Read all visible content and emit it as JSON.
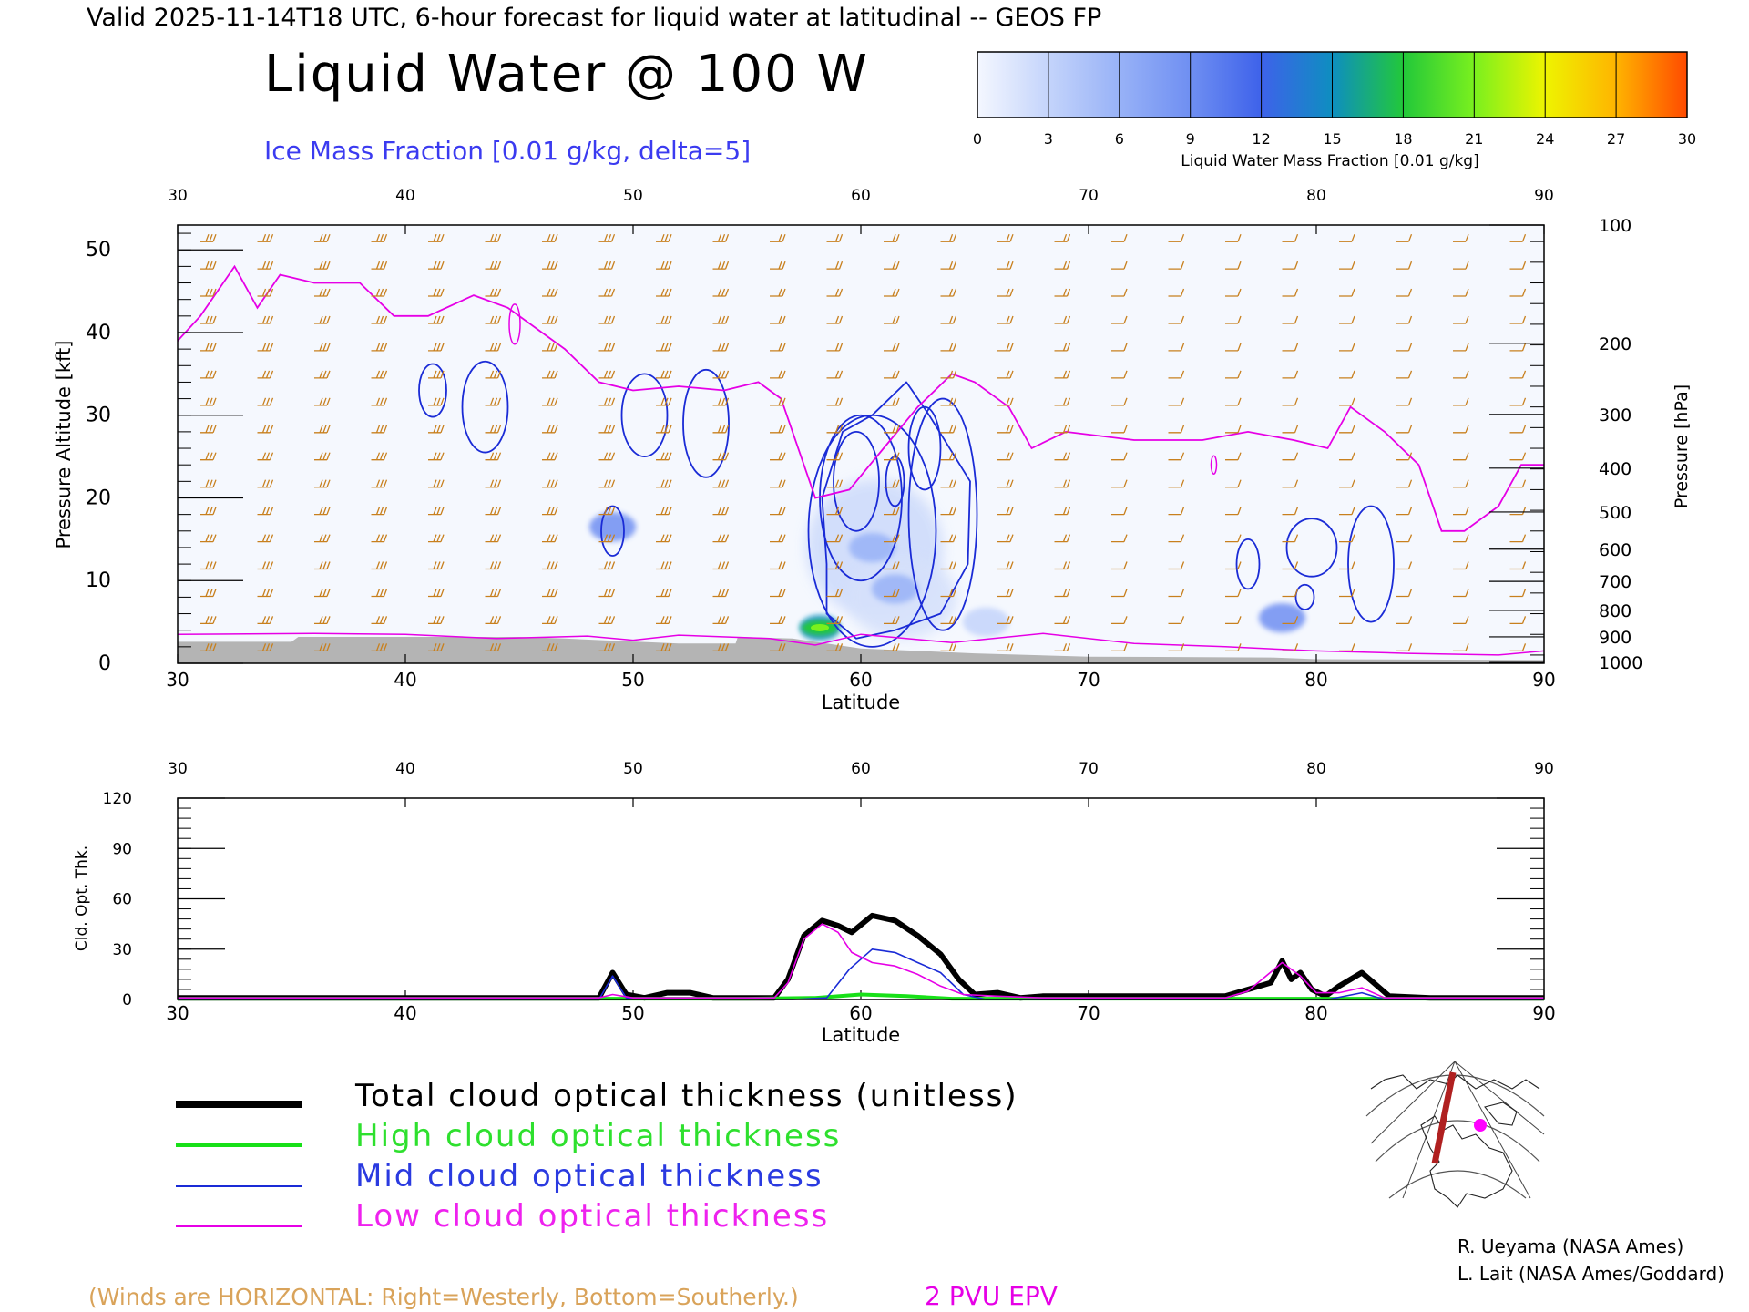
{
  "header": {
    "valid_line": "Valid 2025-11-14T18 UTC, 6-hour forecast for liquid water at latitudinal -- GEOS FP",
    "title": "Liquid Water @ 100 W",
    "ice_label": "Ice Mass Fraction [0.01 g/kg, delta=5]"
  },
  "colorbar": {
    "ticks": [
      "0",
      "3",
      "6",
      "9",
      "12",
      "15",
      "18",
      "21",
      "24",
      "27",
      "30"
    ],
    "colors": [
      "#f4f7ff",
      "#c4d4fb",
      "#98b2f7",
      "#6f8ff2",
      "#3e62ea",
      "#0e8ec0",
      "#22c83a",
      "#7af01e",
      "#eef400",
      "#ffb400",
      "#ff4a00"
    ],
    "label": "Liquid Water Mass Fraction [0.01 g/kg]"
  },
  "chart_data": [
    {
      "type": "heatmap",
      "top_axis_ticks": [
        "30",
        "40",
        "50",
        "60",
        "70",
        "80",
        "90"
      ],
      "x_ticks": [
        "30",
        "40",
        "50",
        "60",
        "70",
        "80",
        "90"
      ],
      "xlabel": "Latitude",
      "xlim": [
        30,
        90
      ],
      "ylabel": "Pressure Altitude [kft]",
      "y_ticks": [
        "0",
        "10",
        "20",
        "30",
        "40",
        "50"
      ],
      "ylim": [
        0,
        53
      ],
      "right_ylabel": "Pressure [hPa]",
      "right_ticks": [
        {
          "label": "100",
          "kft": 53.0
        },
        {
          "label": "200",
          "kft": 38.7
        },
        {
          "label": "300",
          "kft": 30.1
        },
        {
          "label": "400",
          "kft": 23.6
        },
        {
          "label": "500",
          "kft": 18.3
        },
        {
          "label": "600",
          "kft": 13.8
        },
        {
          "label": "700",
          "kft": 9.9
        },
        {
          "label": "800",
          "kft": 6.4
        },
        {
          "label": "900",
          "kft": 3.2
        },
        {
          "label": "1000",
          "kft": 0.1
        }
      ],
      "liquid_water_blobs": [
        {
          "lat": 58.2,
          "kft": 4.3,
          "value": 16
        },
        {
          "lat": 60.5,
          "kft": 14,
          "value": 7
        },
        {
          "lat": 61.5,
          "kft": 9,
          "value": 5
        },
        {
          "lat": 49.1,
          "kft": 16.5,
          "value": 9
        },
        {
          "lat": 78.5,
          "kft": 5.5,
          "value": 9
        },
        {
          "lat": 65.5,
          "kft": 5.0,
          "value": 4
        }
      ],
      "ice_contour_color": "#1a2bd6",
      "pv_contour_color": "#e600e6",
      "pv_2pvu_line": [
        [
          30.0,
          39
        ],
        [
          31.0,
          42
        ],
        [
          32.5,
          48
        ],
        [
          33.5,
          43
        ],
        [
          34.5,
          47
        ],
        [
          36.0,
          46
        ],
        [
          38.0,
          46
        ],
        [
          39.5,
          42
        ],
        [
          41.0,
          42
        ],
        [
          43.0,
          44.5
        ],
        [
          44.5,
          43
        ],
        [
          46.0,
          40
        ],
        [
          47.0,
          38
        ],
        [
          48.5,
          34
        ],
        [
          50.0,
          33
        ],
        [
          52.0,
          33.5
        ],
        [
          54.0,
          33
        ],
        [
          55.5,
          34
        ],
        [
          56.5,
          32
        ],
        [
          58.0,
          20
        ],
        [
          59.5,
          21
        ],
        [
          61.0,
          26
        ],
        [
          62.5,
          31
        ],
        [
          64.0,
          35
        ],
        [
          65.0,
          34
        ],
        [
          66.5,
          31
        ],
        [
          67.5,
          26
        ],
        [
          69.0,
          28
        ],
        [
          72.0,
          27
        ],
        [
          75.0,
          27
        ],
        [
          77.0,
          28
        ],
        [
          79.0,
          27
        ],
        [
          80.5,
          26
        ],
        [
          81.5,
          31
        ],
        [
          83.0,
          28
        ],
        [
          84.5,
          24
        ],
        [
          85.5,
          16
        ],
        [
          86.5,
          16
        ],
        [
          88.0,
          19
        ],
        [
          89.0,
          24
        ],
        [
          90.0,
          24
        ]
      ],
      "wind_color": "#c8801e",
      "terrain_color": "#b4b4b4"
    },
    {
      "type": "line",
      "top_axis_ticks": [
        "30",
        "40",
        "50",
        "60",
        "70",
        "80",
        "90"
      ],
      "x_ticks": [
        "30",
        "40",
        "50",
        "60",
        "70",
        "80",
        "90"
      ],
      "xlabel": "Latitude",
      "xlim": [
        30,
        90
      ],
      "ylabel": "Cld. Opt. Thk.",
      "y_ticks": [
        "0",
        "30",
        "60",
        "90",
        "120"
      ],
      "ylim": [
        0,
        120
      ],
      "series": [
        {
          "name": "Total cloud optical thickness (unitless)",
          "color": "#000000",
          "values": [
            [
              30,
              1
            ],
            [
              48.5,
              1
            ],
            [
              49.1,
              16
            ],
            [
              49.7,
              3
            ],
            [
              50.5,
              1
            ],
            [
              51.5,
              4
            ],
            [
              52.5,
              4
            ],
            [
              53.5,
              1
            ],
            [
              56.2,
              1
            ],
            [
              56.8,
              12
            ],
            [
              57.5,
              38
            ],
            [
              58.3,
              47
            ],
            [
              59.0,
              44
            ],
            [
              59.6,
              40
            ],
            [
              60.5,
              50
            ],
            [
              61.5,
              47
            ],
            [
              62.5,
              38
            ],
            [
              63.5,
              27
            ],
            [
              64.3,
              12
            ],
            [
              65.0,
              3
            ],
            [
              66.0,
              4
            ],
            [
              67.0,
              1
            ],
            [
              68.0,
              2
            ],
            [
              72.0,
              2
            ],
            [
              76.0,
              2
            ],
            [
              77.0,
              6
            ],
            [
              78.0,
              10
            ],
            [
              78.5,
              23
            ],
            [
              78.9,
              12
            ],
            [
              79.3,
              16
            ],
            [
              79.8,
              6
            ],
            [
              80.4,
              2
            ],
            [
              81.0,
              8
            ],
            [
              82.0,
              16
            ],
            [
              82.6,
              9
            ],
            [
              83.2,
              2
            ],
            [
              85.0,
              1
            ],
            [
              90.0,
              1
            ]
          ]
        },
        {
          "name": "High cloud optical thickness",
          "color": "#18e018",
          "values": [
            [
              30,
              0.5
            ],
            [
              55,
              0.5
            ],
            [
              58,
              1
            ],
            [
              60,
              3
            ],
            [
              62,
              2
            ],
            [
              64,
              0.5
            ],
            [
              90,
              0.5
            ]
          ]
        },
        {
          "name": "Mid cloud optical thickness",
          "color": "#1a2bd6",
          "values": [
            [
              30,
              0
            ],
            [
              48.5,
              0
            ],
            [
              49.1,
              14
            ],
            [
              49.7,
              1
            ],
            [
              57,
              0
            ],
            [
              58.5,
              1
            ],
            [
              59.5,
              18
            ],
            [
              60.5,
              30
            ],
            [
              61.5,
              28
            ],
            [
              62.5,
              22
            ],
            [
              63.5,
              16
            ],
            [
              64.5,
              3
            ],
            [
              65.5,
              0
            ],
            [
              80.5,
              0
            ],
            [
              82,
              4
            ],
            [
              83,
              0
            ],
            [
              90,
              0
            ]
          ]
        },
        {
          "name": "Low cloud optical thickness",
          "color": "#e600e6",
          "values": [
            [
              30,
              1
            ],
            [
              48.5,
              1
            ],
            [
              49.1,
              3
            ],
            [
              50,
              1
            ],
            [
              56.2,
              1
            ],
            [
              56.8,
              10
            ],
            [
              57.5,
              36
            ],
            [
              58.3,
              45
            ],
            [
              59.0,
              40
            ],
            [
              59.6,
              28
            ],
            [
              60.5,
              22
            ],
            [
              61.5,
              20
            ],
            [
              62.5,
              15
            ],
            [
              63.5,
              8
            ],
            [
              64.5,
              3
            ],
            [
              66,
              2
            ],
            [
              68,
              1
            ],
            [
              76,
              1
            ],
            [
              77,
              5
            ],
            [
              78.5,
              22
            ],
            [
              79.3,
              14
            ],
            [
              80,
              4
            ],
            [
              81,
              4
            ],
            [
              82,
              7
            ],
            [
              83,
              1
            ],
            [
              90,
              1
            ]
          ]
        }
      ]
    }
  ],
  "legend": {
    "total": "Total cloud optical thickness (unitless)",
    "high": "High cloud optical thickness",
    "mid": "Mid cloud optical thickness",
    "low": "Low cloud optical thickness",
    "colors": {
      "total": "#000000",
      "high": "#18e018",
      "mid": "#1a2bd6",
      "low": "#e600e6"
    }
  },
  "footer": {
    "winds_note": "(Winds are HORIZONTAL: Right=Westerly, Bottom=Southerly.)",
    "pv_note": "2 PVU EPV",
    "credit1": "R. Ueyama (NASA Ames)",
    "credit2": "L. Lait (NASA Ames/Goddard)"
  }
}
